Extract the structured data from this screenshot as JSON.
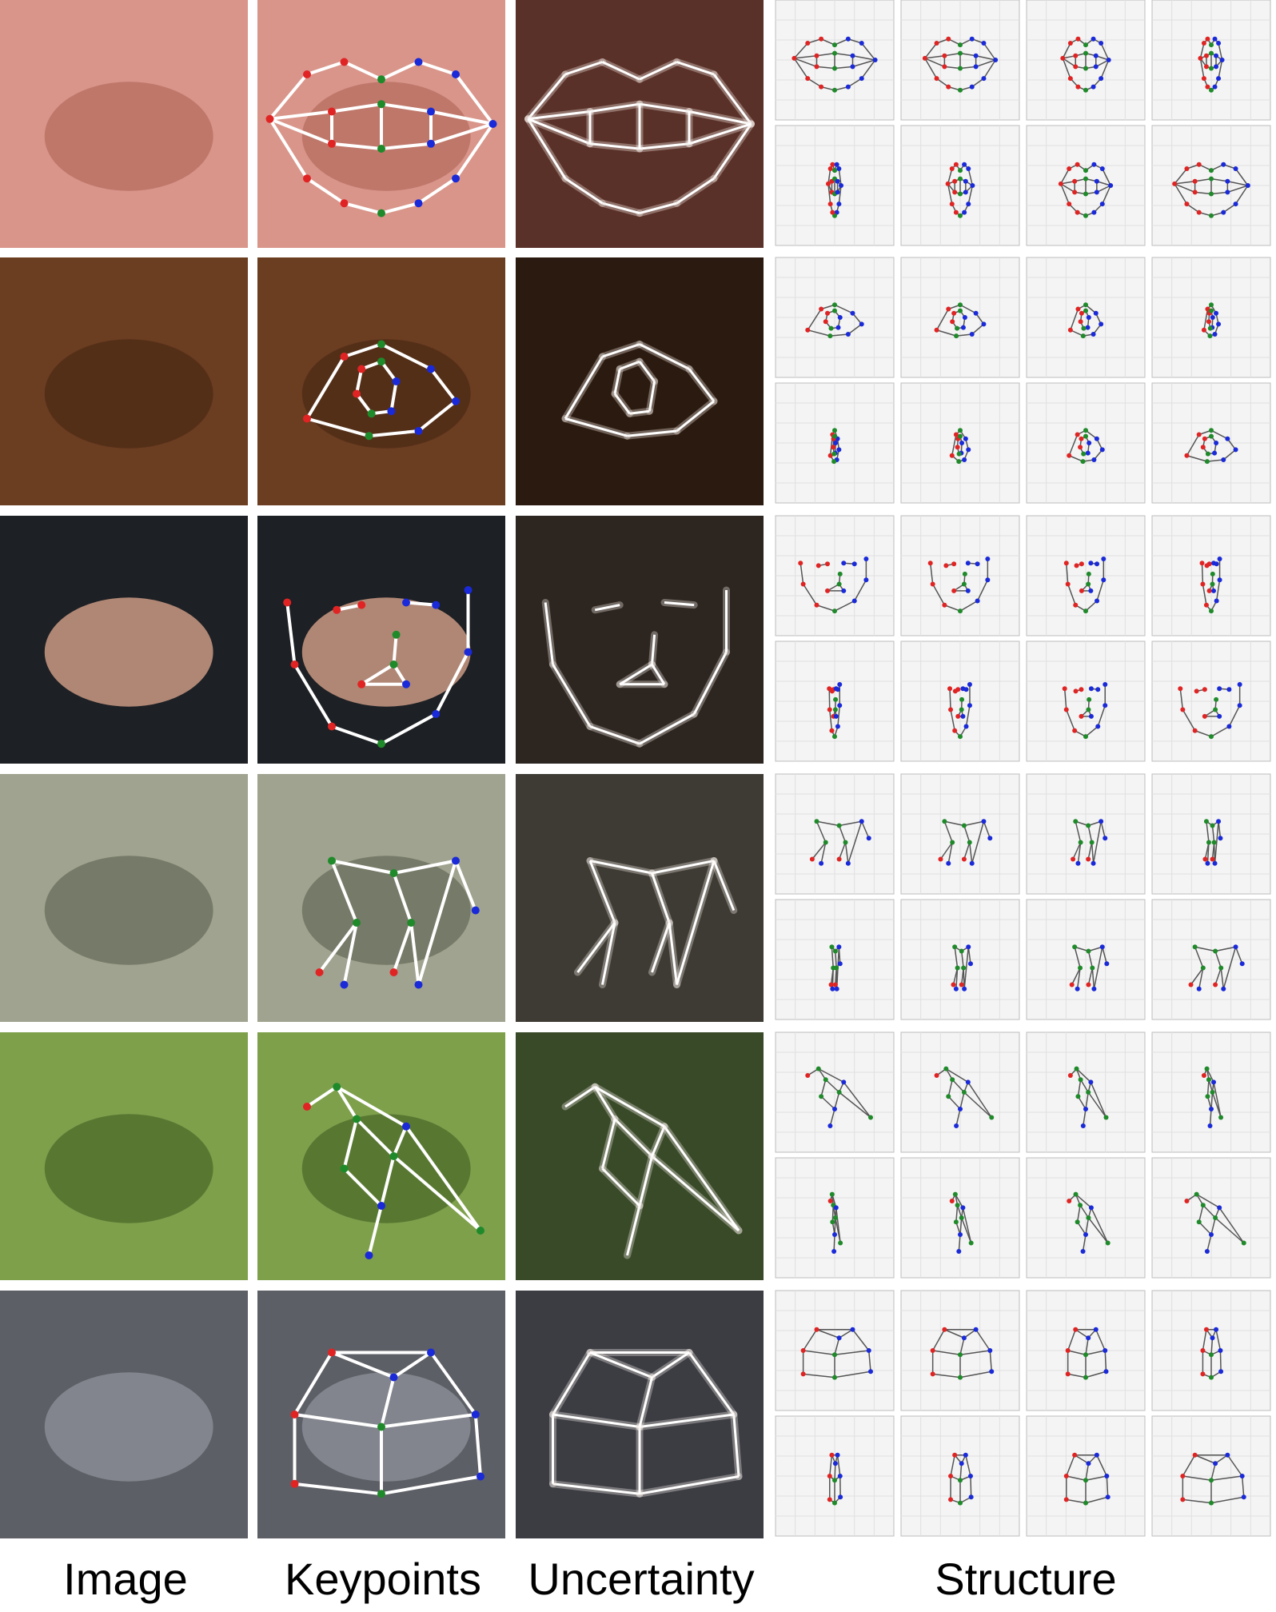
{
  "captions": {
    "image": "Image",
    "keypoints": "Keypoints",
    "uncertainty": "Uncertainty",
    "structure": "Structure"
  },
  "colors": {
    "left_keypoint": "#e02424",
    "center_keypoint": "#1f8a2a",
    "right_keypoint": "#1a2ad8",
    "skeleton_line": "#ffffff",
    "structure_line": "#555555",
    "plot_panel": "#f4f4f4"
  },
  "rows": [
    {
      "object": "mouth",
      "backgrounds": [
        "#d9958a",
        "#b86f61",
        "#5a3128"
      ]
    },
    {
      "object": "eye",
      "backgrounds": [
        "#6b3d21",
        "#4f2c17",
        "#2b1a0f"
      ]
    },
    {
      "object": "face",
      "backgrounds": [
        "#1d2024",
        "#d6a189",
        "#2c2520"
      ]
    },
    {
      "object": "tiger",
      "backgrounds": [
        "#9fa38f",
        "#6c6f5e",
        "#3d3b33"
      ]
    },
    {
      "object": "bird",
      "backgrounds": [
        "#7ea04b",
        "#4f6e2c",
        "#384a28"
      ]
    },
    {
      "object": "car",
      "backgrounds": [
        "#5d5f66",
        "#8c8f97",
        "#3b3d43"
      ]
    }
  ]
}
